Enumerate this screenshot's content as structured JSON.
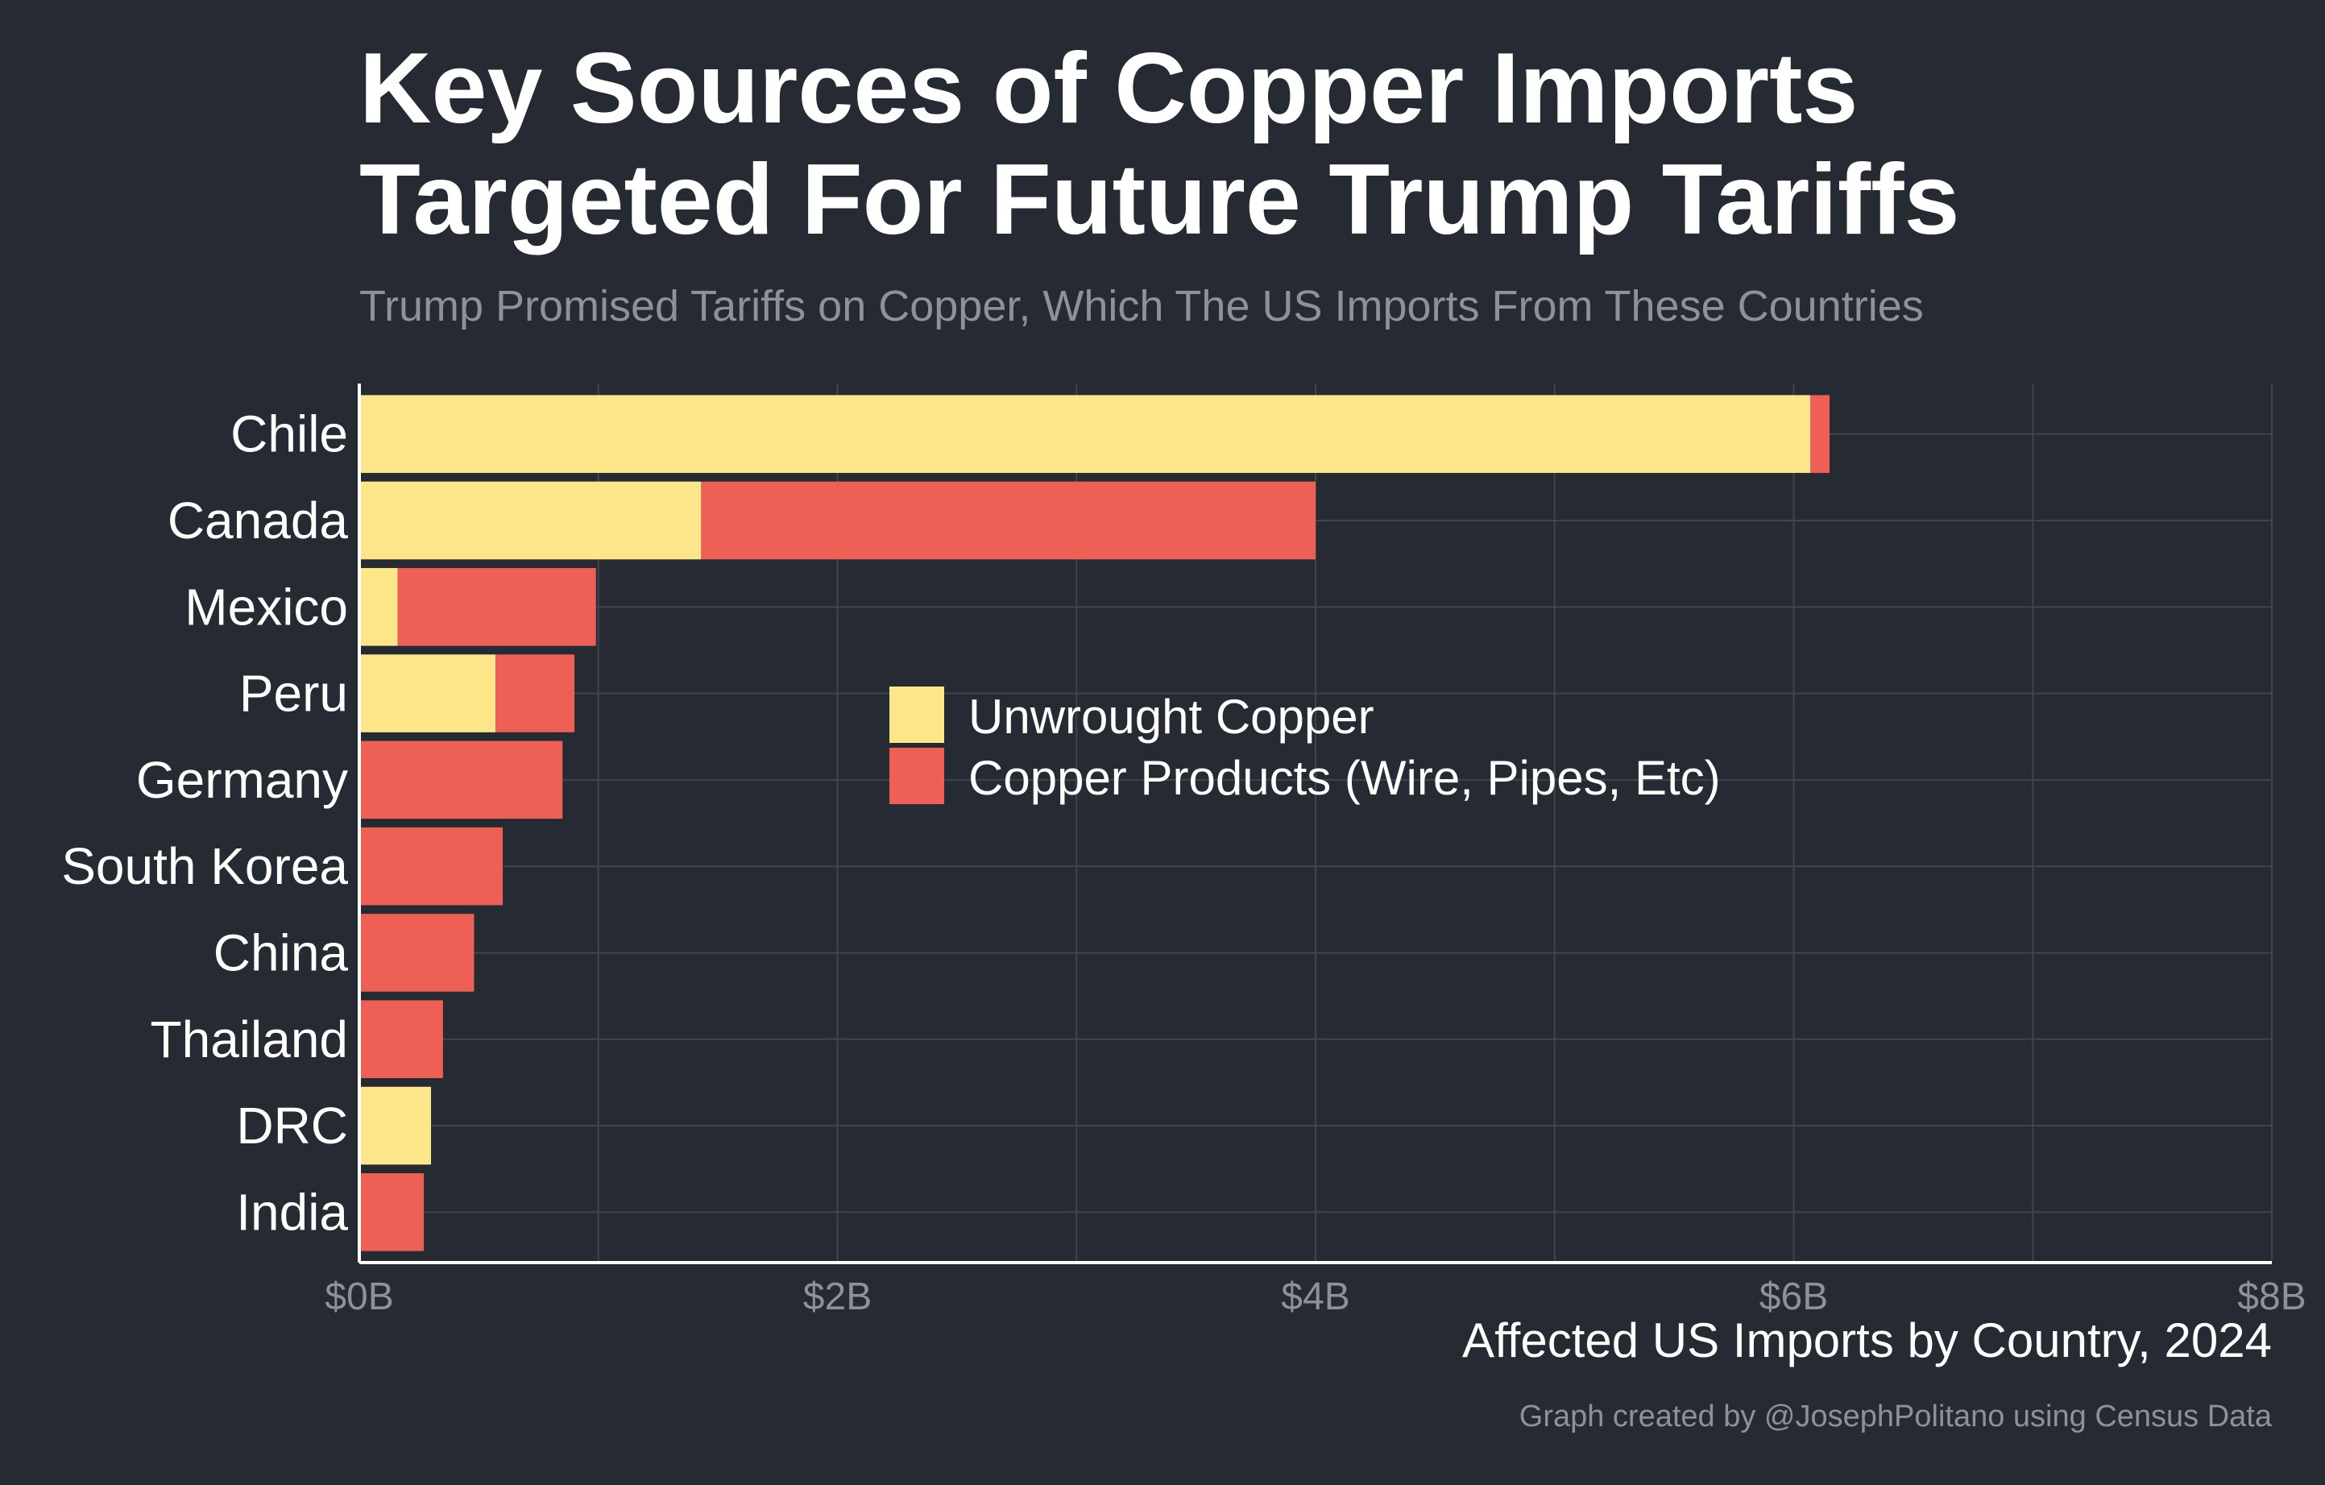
{
  "chart_data": {
    "type": "bar",
    "orientation": "horizontal",
    "stacked": true,
    "title_lines": [
      "Key Sources of Copper Imports",
      "Targeted For Future Trump Tariffs"
    ],
    "subtitle": "Trump Promised Tariffs on Copper, Which The US Imports From These Countries",
    "xlabel": "Affected US Imports by Country, 2024",
    "caption": "Graph created by @JosephPolitano using Census Data",
    "categories": [
      "Chile",
      "Canada",
      "Mexico",
      "Peru",
      "Germany",
      "South Korea",
      "China",
      "Thailand",
      "DRC",
      "India"
    ],
    "series": [
      {
        "name": "Unwrought Copper",
        "color": "#fde68a",
        "values": [
          6.07,
          1.43,
          0.16,
          0.57,
          0.0,
          0.0,
          0.0,
          0.0,
          0.3,
          0.0
        ]
      },
      {
        "name": "Copper Products (Wire, Pipes, Etc)",
        "color": "#ee6055",
        "values": [
          0.08,
          2.57,
          0.83,
          0.33,
          0.85,
          0.6,
          0.48,
          0.35,
          0.0,
          0.27
        ]
      }
    ],
    "x_ticks": [
      0,
      2,
      4,
      6,
      8
    ],
    "x_tick_labels": [
      "$0B",
      "$2B",
      "$4B",
      "$6B",
      "$8B"
    ],
    "xlim": [
      0,
      8
    ],
    "units": "billions USD",
    "grid": true,
    "legend_position": "center"
  }
}
